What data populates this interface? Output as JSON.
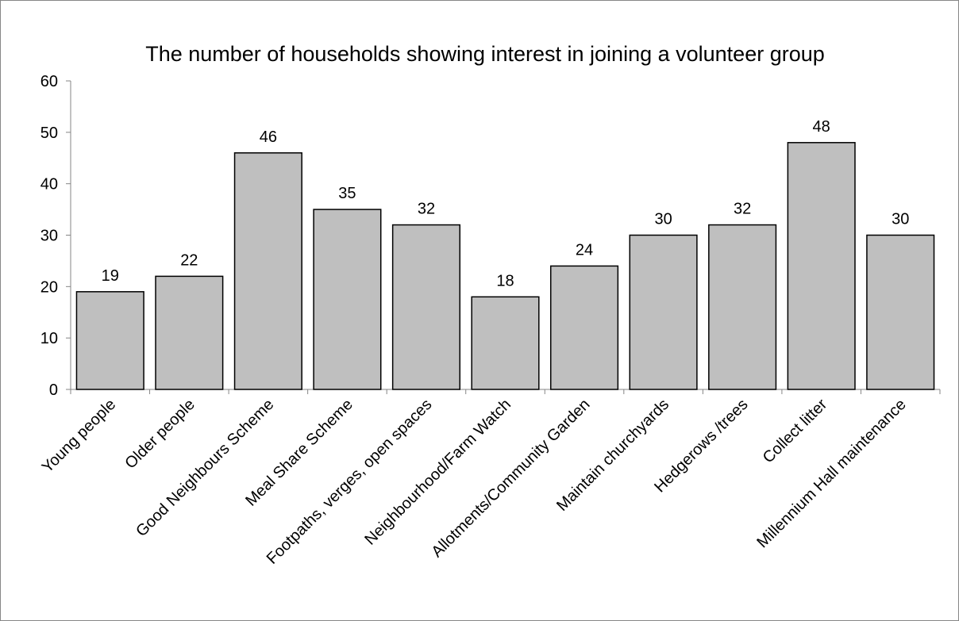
{
  "chart_data": {
    "type": "bar",
    "title": "The number of households showing interest in joining a volunteer group",
    "categories": [
      "Young people",
      "Older people",
      "Good Neighbours Scheme",
      "Meal Share Scheme",
      "Footpaths, verges, open spaces",
      "Neighbourhood/Farm Watch",
      "Allotments/Community Garden",
      "Maintain churchyards",
      "Hedgerows /trees",
      "Collect litter",
      "Millennium Hall maintenance"
    ],
    "values": [
      19,
      22,
      46,
      35,
      32,
      18,
      24,
      30,
      32,
      48,
      30
    ],
    "ylim": [
      0,
      60
    ],
    "yticks": [
      0,
      10,
      20,
      30,
      40,
      50,
      60
    ],
    "grid": false,
    "legend": "none",
    "bar_color": "#bfbfbf",
    "bar_stroke": "#000000"
  }
}
